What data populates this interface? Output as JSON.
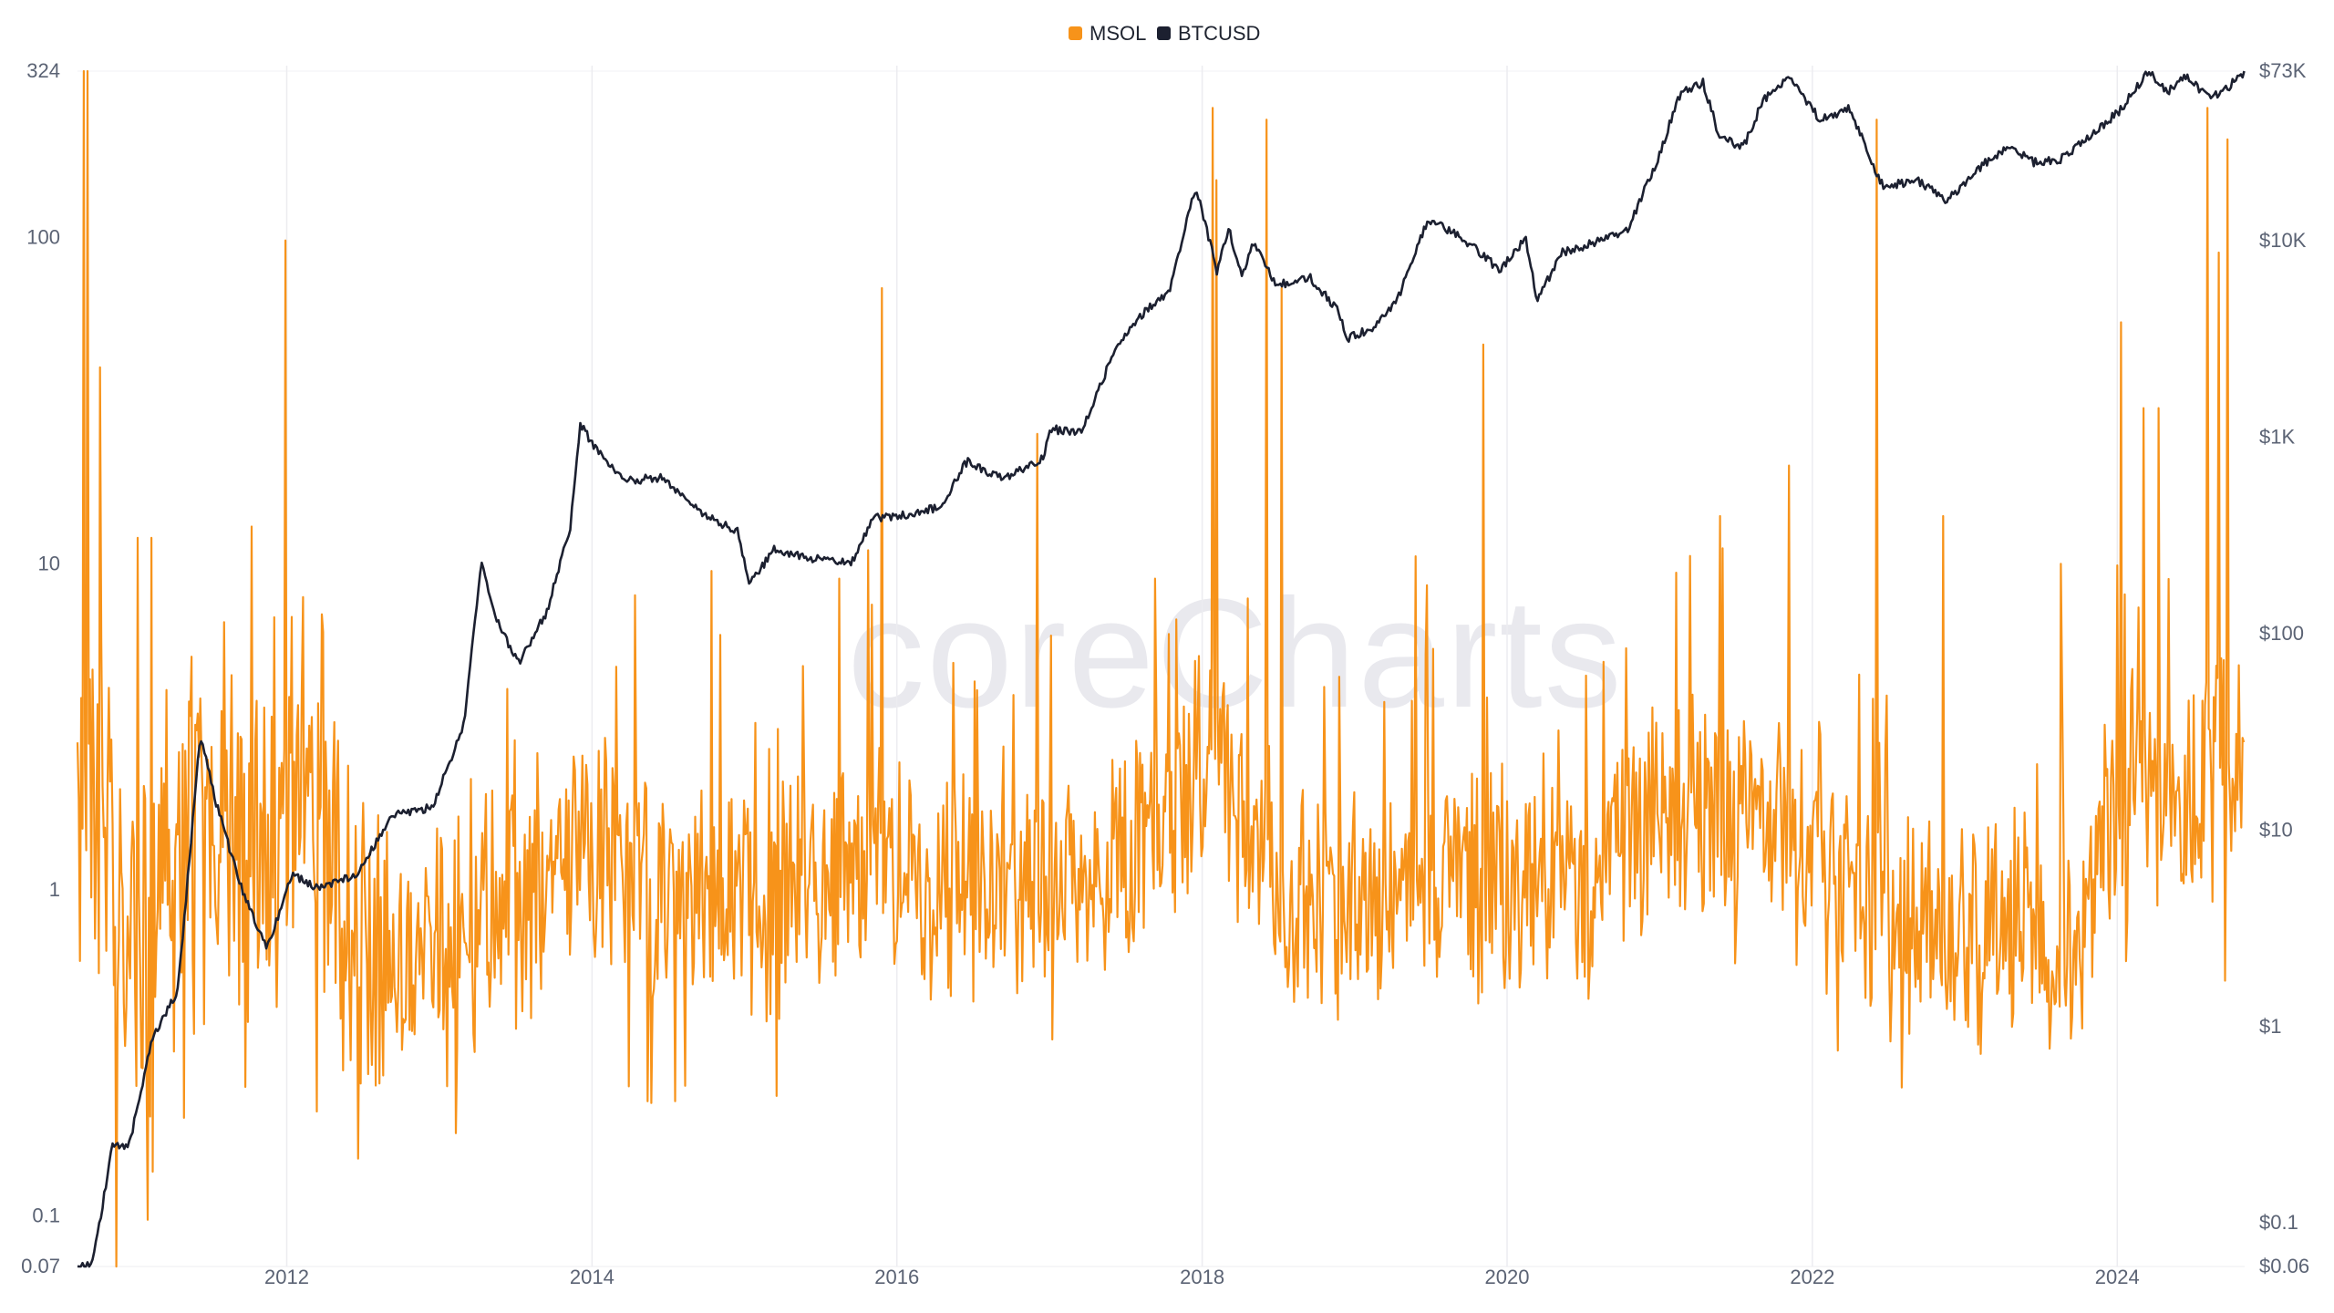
{
  "watermark": "coreCharts",
  "legend": [
    {
      "name": "MSOL",
      "color": "#f7931a"
    },
    {
      "name": "BTCUSD",
      "color": "#1c2030"
    }
  ],
  "chart_data": {
    "type": "line",
    "x_range": [
      "2010-08-18",
      "2024-11-01"
    ],
    "x_ticks": [
      "2012",
      "2014",
      "2016",
      "2018",
      "2020",
      "2022",
      "2024"
    ],
    "grid": {
      "vertical": true,
      "horizontal": false
    },
    "legend_position": "top-center",
    "y_left": {
      "scale": "log",
      "range": [
        0.07,
        324
      ],
      "ticks": [
        {
          "value": 324,
          "label": "324"
        },
        {
          "value": 100,
          "label": "100"
        },
        {
          "value": 10,
          "label": "10"
        },
        {
          "value": 1,
          "label": "1"
        },
        {
          "value": 0.1,
          "label": "0.1"
        },
        {
          "value": 0.07,
          "label": "0.07"
        }
      ]
    },
    "y_right": {
      "scale": "log",
      "range": [
        0.06,
        73000
      ],
      "ticks": [
        {
          "value": 73000,
          "label": "$73K"
        },
        {
          "value": 10000,
          "label": "$10K"
        },
        {
          "value": 1000,
          "label": "$1K"
        },
        {
          "value": 100,
          "label": "$100"
        },
        {
          "value": 10,
          "label": "$10"
        },
        {
          "value": 1,
          "label": "$1"
        },
        {
          "value": 0.1,
          "label": "$0.1"
        },
        {
          "value": 0.06,
          "label": "$0.06"
        }
      ]
    },
    "series": [
      {
        "name": "MSOL",
        "axis": "left",
        "color": "#f7931a",
        "baseline": [
          [
            "2010-08-18",
            1.8
          ],
          [
            "2010-10-01",
            2.0
          ],
          [
            "2010-12-01",
            0.8
          ],
          [
            "2011-02-01",
            0.6
          ],
          [
            "2011-04-01",
            1.1
          ],
          [
            "2011-06-01",
            1.6
          ],
          [
            "2011-08-01",
            1.5
          ],
          [
            "2011-10-01",
            1.2
          ],
          [
            "2011-12-01",
            1.4
          ],
          [
            "2012-02-01",
            2.2
          ],
          [
            "2012-04-01",
            1.3
          ],
          [
            "2012-06-01",
            0.55
          ],
          [
            "2012-09-01",
            0.6
          ],
          [
            "2012-12-01",
            0.75
          ],
          [
            "2013-03-01",
            0.7
          ],
          [
            "2013-06-01",
            0.9
          ],
          [
            "2013-09-01",
            1.0
          ],
          [
            "2013-12-01",
            1.25
          ],
          [
            "2014-03-01",
            1.1
          ],
          [
            "2014-06-01",
            1.0
          ],
          [
            "2014-09-01",
            1.0
          ],
          [
            "2014-12-01",
            0.95
          ],
          [
            "2015-03-01",
            0.95
          ],
          [
            "2015-06-01",
            1.0
          ],
          [
            "2015-09-01",
            1.1
          ],
          [
            "2015-12-01",
            1.1
          ],
          [
            "2016-03-01",
            0.95
          ],
          [
            "2016-06-01",
            1.1
          ],
          [
            "2016-09-01",
            1.0
          ],
          [
            "2016-12-01",
            1.1
          ],
          [
            "2017-03-01",
            1.15
          ],
          [
            "2017-06-01",
            1.2
          ],
          [
            "2017-09-01",
            1.4
          ],
          [
            "2017-12-01",
            2.0
          ],
          [
            "2018-02-01",
            3.5
          ],
          [
            "2018-04-01",
            1.6
          ],
          [
            "2018-07-01",
            1.2
          ],
          [
            "2018-10-01",
            0.9
          ],
          [
            "2019-01-01",
            0.85
          ],
          [
            "2019-04-01",
            0.9
          ],
          [
            "2019-07-01",
            1.25
          ],
          [
            "2019-10-01",
            1.1
          ],
          [
            "2020-01-01",
            1.0
          ],
          [
            "2020-04-01",
            1.05
          ],
          [
            "2020-07-01",
            1.1
          ],
          [
            "2020-10-01",
            1.25
          ],
          [
            "2021-01-01",
            1.6
          ],
          [
            "2021-04-01",
            1.9
          ],
          [
            "2021-07-01",
            1.7
          ],
          [
            "2021-10-01",
            1.6
          ],
          [
            "2022-01-01",
            1.3
          ],
          [
            "2022-04-01",
            1.05
          ],
          [
            "2022-07-01",
            0.75
          ],
          [
            "2022-10-01",
            0.7
          ],
          [
            "2023-01-01",
            0.75
          ],
          [
            "2023-04-01",
            0.8
          ],
          [
            "2023-07-01",
            0.7
          ],
          [
            "2023-10-01",
            0.7
          ],
          [
            "2024-01-01",
            1.8
          ],
          [
            "2024-03-01",
            2.4
          ],
          [
            "2024-06-01",
            1.9
          ],
          [
            "2024-09-01",
            2.2
          ],
          [
            "2024-11-01",
            2.3
          ]
        ],
        "spikes": [
          [
            "2010-09-01",
            324
          ],
          [
            "2010-09-10",
            324
          ],
          [
            "2010-10-10",
            40
          ],
          [
            "2010-11-20",
            0.07
          ],
          [
            "2011-01-10",
            12
          ],
          [
            "2011-02-10",
            12
          ],
          [
            "2011-05-01",
            0.2
          ],
          [
            "2011-10-10",
            13
          ],
          [
            "2011-12-28",
            98
          ],
          [
            "2012-03-25",
            7
          ],
          [
            "2012-06-20",
            0.15
          ],
          [
            "2013-01-20",
            0.25
          ],
          [
            "2014-04-15",
            8
          ],
          [
            "2014-10-15",
            9.5
          ],
          [
            "2015-08-15",
            9
          ],
          [
            "2015-10-25",
            11
          ],
          [
            "2015-11-25",
            70
          ],
          [
            "2016-12-01",
            25
          ],
          [
            "2017-09-10",
            9
          ],
          [
            "2018-01-25",
            250
          ],
          [
            "2018-02-05",
            150
          ],
          [
            "2018-06-05",
            230
          ],
          [
            "2018-07-10",
            70
          ],
          [
            "2019-11-05",
            47
          ],
          [
            "2020-08-20",
            5
          ],
          [
            "2021-05-25",
            14
          ],
          [
            "2021-11-05",
            20
          ],
          [
            "2022-06-05",
            230
          ],
          [
            "2022-11-10",
            14
          ],
          [
            "2023-08-20",
            10
          ],
          [
            "2024-01-10",
            55
          ],
          [
            "2024-03-05",
            30
          ],
          [
            "2024-04-10",
            30
          ],
          [
            "2024-08-05",
            250
          ],
          [
            "2024-09-01",
            90
          ],
          [
            "2024-09-20",
            200
          ]
        ]
      },
      {
        "name": "BTCUSD",
        "axis": "right",
        "color": "#1c2030",
        "points": [
          [
            "2010-08-18",
            0.06
          ],
          [
            "2010-09-20",
            0.06
          ],
          [
            "2010-10-10",
            0.1
          ],
          [
            "2010-11-10",
            0.25
          ],
          [
            "2010-12-20",
            0.25
          ],
          [
            "2011-02-15",
            0.9
          ],
          [
            "2011-04-15",
            1.5
          ],
          [
            "2011-06-08",
            30
          ],
          [
            "2011-07-15",
            14
          ],
          [
            "2011-09-15",
            5
          ],
          [
            "2011-11-15",
            2.5
          ],
          [
            "2012-01-15",
            6
          ],
          [
            "2012-03-15",
            5
          ],
          [
            "2012-06-15",
            6
          ],
          [
            "2012-09-15",
            12
          ],
          [
            "2012-12-15",
            13
          ],
          [
            "2013-03-01",
            35
          ],
          [
            "2013-04-10",
            230
          ],
          [
            "2013-05-15",
            120
          ],
          [
            "2013-07-10",
            70
          ],
          [
            "2013-09-15",
            130
          ],
          [
            "2013-11-10",
            350
          ],
          [
            "2013-12-04",
            1150
          ],
          [
            "2014-01-15",
            850
          ],
          [
            "2014-03-15",
            600
          ],
          [
            "2014-06-15",
            620
          ],
          [
            "2014-09-15",
            420
          ],
          [
            "2014-12-15",
            330
          ],
          [
            "2015-01-14",
            180
          ],
          [
            "2015-03-15",
            270
          ],
          [
            "2015-06-15",
            240
          ],
          [
            "2015-09-15",
            230
          ],
          [
            "2015-11-05",
            390
          ],
          [
            "2016-01-15",
            400
          ],
          [
            "2016-04-15",
            440
          ],
          [
            "2016-06-16",
            750
          ],
          [
            "2016-09-15",
            610
          ],
          [
            "2016-12-15",
            780
          ],
          [
            "2017-01-05",
            1100
          ],
          [
            "2017-03-15",
            1050
          ],
          [
            "2017-06-10",
            2900
          ],
          [
            "2017-08-15",
            4300
          ],
          [
            "2017-10-15",
            5600
          ],
          [
            "2017-12-17",
            19000
          ],
          [
            "2018-02-06",
            6900
          ],
          [
            "2018-03-05",
            11500
          ],
          [
            "2018-04-06",
            6600
          ],
          [
            "2018-05-05",
            9800
          ],
          [
            "2018-06-28",
            5900
          ],
          [
            "2018-09-15",
            6500
          ],
          [
            "2018-11-20",
            4500
          ],
          [
            "2018-12-15",
            3200
          ],
          [
            "2019-02-15",
            3600
          ],
          [
            "2019-04-15",
            5100
          ],
          [
            "2019-06-26",
            12800
          ],
          [
            "2019-09-15",
            10300
          ],
          [
            "2019-12-15",
            7100
          ],
          [
            "2020-02-14",
            10300
          ],
          [
            "2020-03-13",
            4900
          ],
          [
            "2020-05-10",
            8700
          ],
          [
            "2020-07-25",
            9700
          ],
          [
            "2020-10-15",
            11400
          ],
          [
            "2020-12-20",
            23800
          ],
          [
            "2021-02-20",
            57000
          ],
          [
            "2021-04-14",
            63500
          ],
          [
            "2021-05-23",
            34000
          ],
          [
            "2021-07-20",
            29800
          ],
          [
            "2021-09-05",
            51700
          ],
          [
            "2021-11-09",
            67500
          ],
          [
            "2022-01-20",
            41000
          ],
          [
            "2022-03-30",
            47000
          ],
          [
            "2022-06-18",
            19000
          ],
          [
            "2022-09-15",
            20000
          ],
          [
            "2022-11-20",
            16000
          ],
          [
            "2023-01-30",
            23000
          ],
          [
            "2023-04-14",
            30500
          ],
          [
            "2023-06-15",
            25000
          ],
          [
            "2023-08-20",
            26000
          ],
          [
            "2023-10-30",
            34500
          ],
          [
            "2024-01-10",
            46500
          ],
          [
            "2024-03-14",
            73000
          ],
          [
            "2024-05-01",
            57000
          ],
          [
            "2024-06-10",
            69500
          ],
          [
            "2024-08-05",
            54000
          ],
          [
            "2024-09-10",
            57000
          ],
          [
            "2024-10-30",
            72000
          ]
        ]
      }
    ]
  }
}
